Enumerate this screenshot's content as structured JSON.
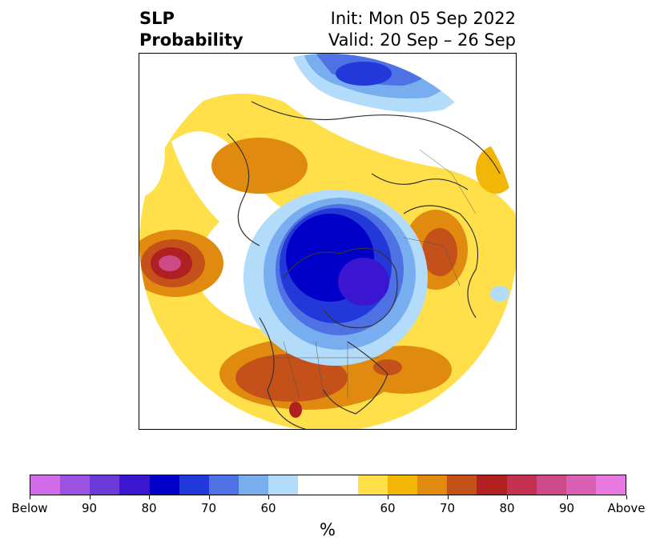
{
  "title": {
    "left_line1": "SLP",
    "left_line2": "Probability",
    "right_line1": "Init: Mon 05 Sep 2022",
    "right_line2": "Valid: 20 Sep – 26 Sep"
  },
  "colorbar": {
    "colors": [
      "#d46be8",
      "#9a52e0",
      "#6c3ad8",
      "#3a16d0",
      "#0000c8",
      "#2238d8",
      "#4e72e4",
      "#78aef0",
      "#b2dcfa",
      "#ffffff",
      "#ffffff",
      "#ffe04a",
      "#f2b706",
      "#e08a10",
      "#c4501a",
      "#b02020",
      "#c43050",
      "#cc4a86",
      "#da60b4",
      "#e878e0"
    ],
    "tick_labels": [
      "Below",
      "90",
      "80",
      "70",
      "60",
      "60",
      "70",
      "80",
      "90",
      "Above"
    ],
    "unit": "%"
  },
  "legend_colors": {
    "below_strong": "#0000c8",
    "below_weak": "#b2dcfa",
    "above_weak": "#ffe04a",
    "above_strong": "#b02020"
  }
}
